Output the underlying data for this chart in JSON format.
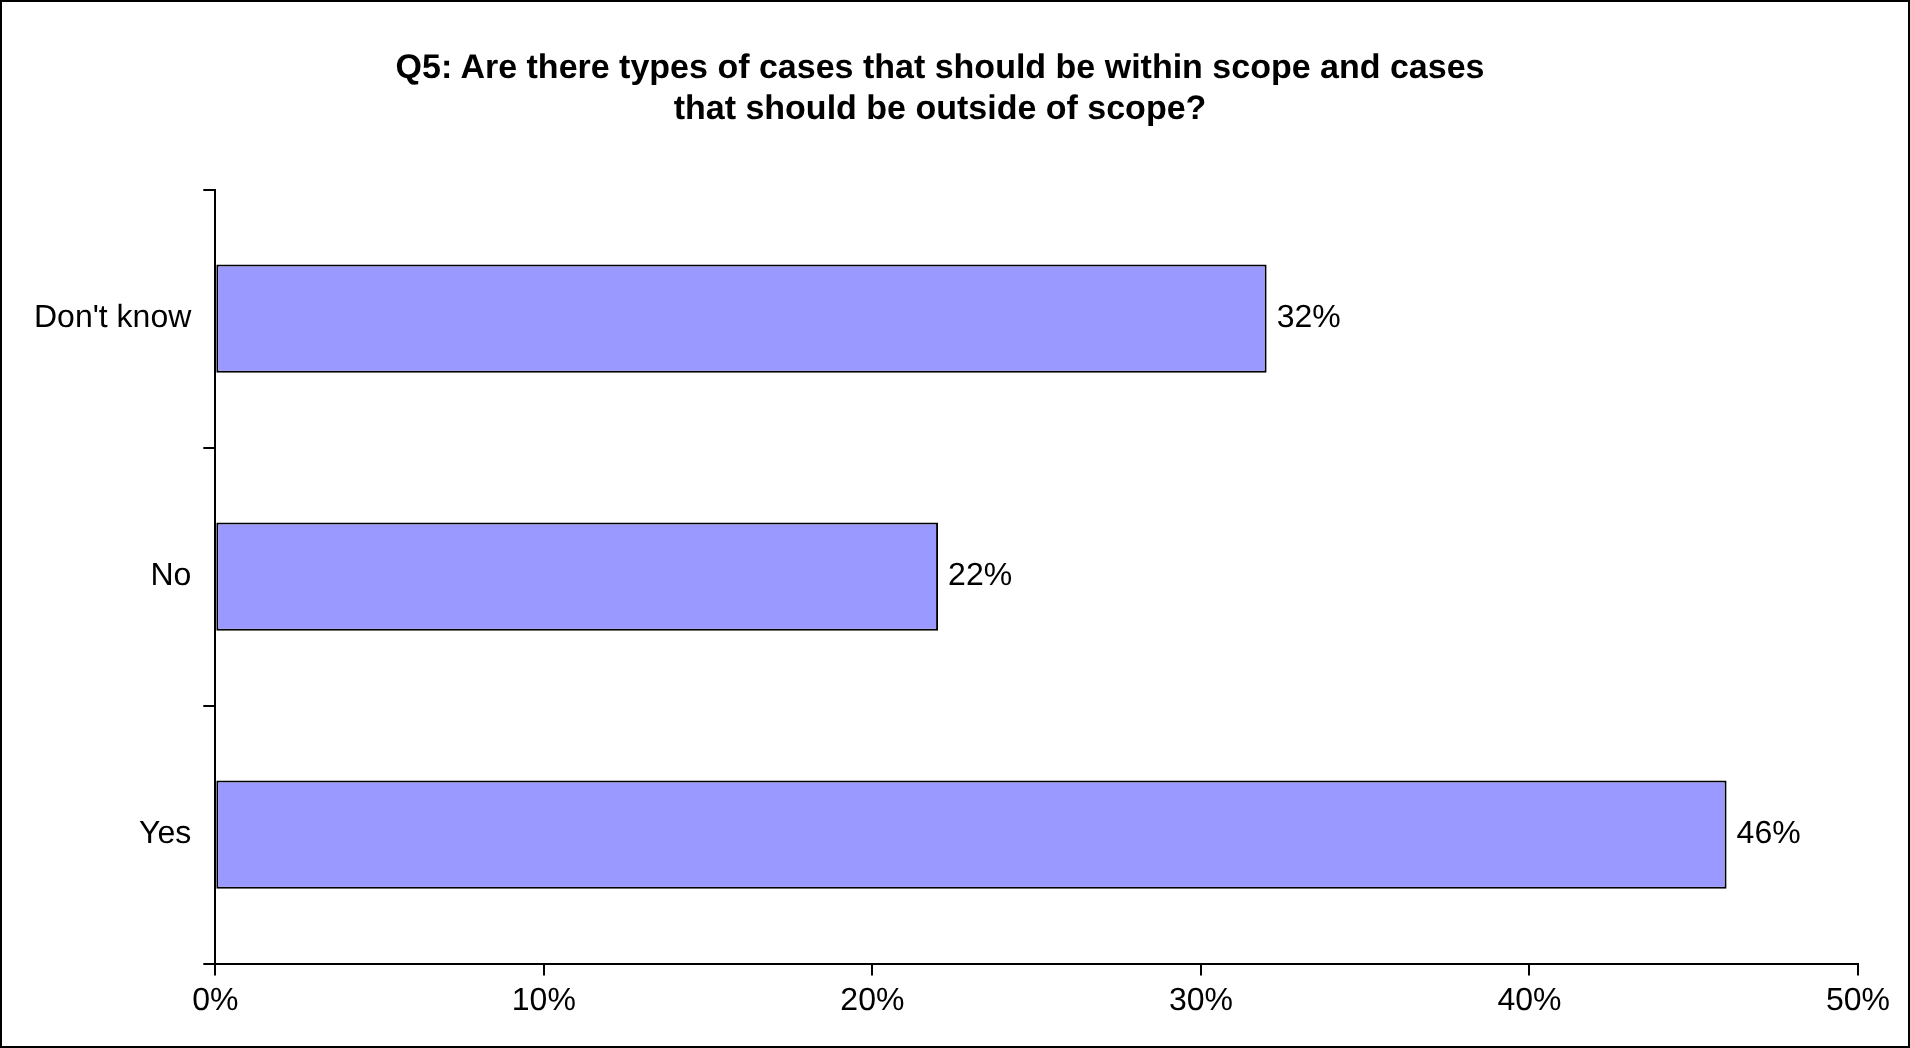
{
  "chart_data": {
    "type": "bar",
    "orientation": "horizontal",
    "title": "Q5: Are there types of cases that should be within scope and cases\nthat should be outside of scope?",
    "categories": [
      "Don't know",
      "No",
      "Yes"
    ],
    "values": [
      32,
      22,
      46
    ],
    "color": "#9999ff",
    "value_labels": [
      "32%",
      "22%",
      "46%"
    ],
    "xlim": [
      0,
      50
    ],
    "xticks": [
      {
        "value": 0,
        "label": "0%"
      },
      {
        "value": 10,
        "label": "10%"
      },
      {
        "value": 20,
        "label": "20%"
      },
      {
        "value": 30,
        "label": "30%"
      },
      {
        "value": 40,
        "label": "40%"
      },
      {
        "value": 50,
        "label": "50%"
      }
    ],
    "grid": false,
    "legend": false
  }
}
